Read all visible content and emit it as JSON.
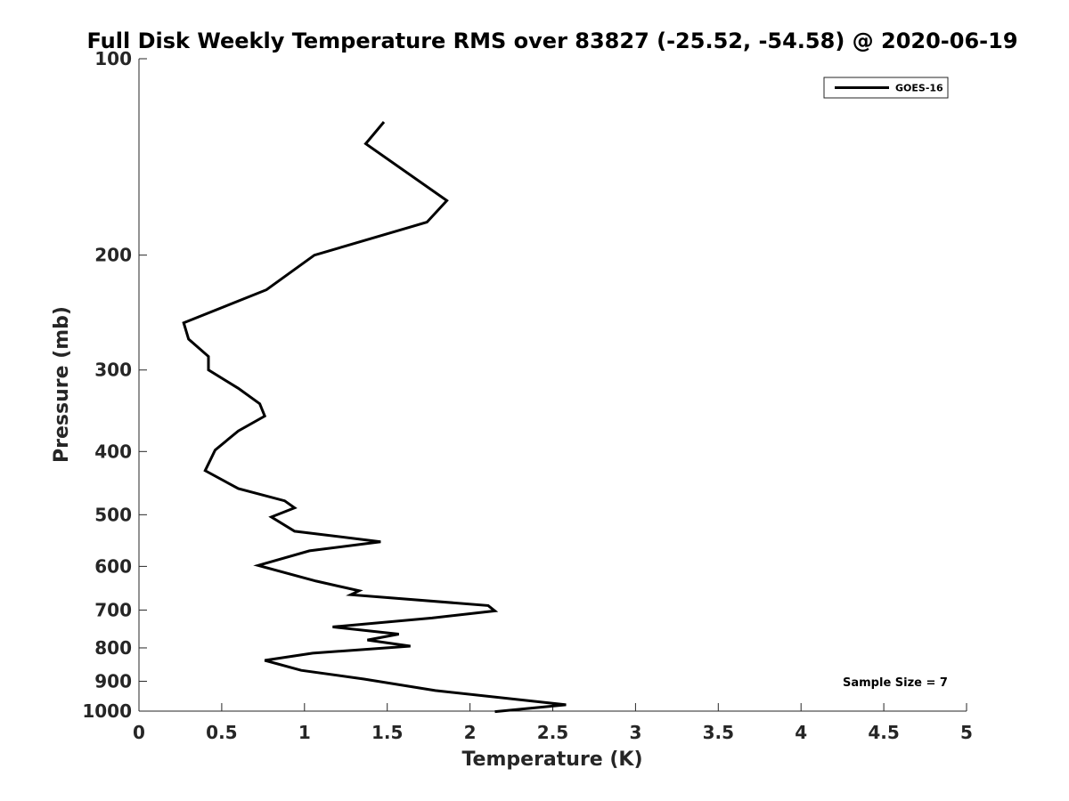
{
  "chart_data": {
    "type": "line",
    "title": "Full Disk Weekly Temperature RMS over 83827 (-25.52, -54.58) @ 2020-06-19",
    "xlabel": "Temperature (K)",
    "ylabel": "Pressure (mb)",
    "xlim": [
      0,
      5
    ],
    "ylim": [
      100,
      1000
    ],
    "y_scale": "log",
    "y_reversed": true,
    "grid": false,
    "x_ticks": [
      "0",
      "0.5",
      "1",
      "1.5",
      "2",
      "2.5",
      "3",
      "3.5",
      "4",
      "4.5",
      "5"
    ],
    "y_ticks": [
      "100",
      "200",
      "300",
      "400",
      "500",
      "600",
      "700",
      "800",
      "900",
      "1000"
    ],
    "legend_position": "top-right",
    "annotation": "Sample Size = 7",
    "series": [
      {
        "name": "GOES-16",
        "color": "#000000",
        "x": [
          1.48,
          1.37,
          1.86,
          1.74,
          1.06,
          0.77,
          0.27,
          0.3,
          0.42,
          0.42,
          0.6,
          0.73,
          0.76,
          0.6,
          0.46,
          0.4,
          0.6,
          0.88,
          0.94,
          0.8,
          0.94,
          1.46,
          1.03,
          0.72,
          1.07,
          1.33,
          1.28,
          2.11,
          2.15,
          1.77,
          1.17,
          1.57,
          1.38,
          1.64,
          1.05,
          0.76,
          0.98,
          1.36,
          1.79,
          2.58,
          2.15
        ],
        "y": [
          125,
          135,
          165,
          178,
          200,
          226,
          254,
          269,
          286,
          300,
          320,
          338,
          353,
          372,
          398,
          428,
          456,
          476,
          488,
          504,
          530,
          550,
          568,
          598,
          632,
          654,
          663,
          689,
          702,
          720,
          743,
          762,
          778,
          795,
          815,
          836,
          866,
          893,
          930,
          978,
          1002
        ]
      }
    ]
  }
}
